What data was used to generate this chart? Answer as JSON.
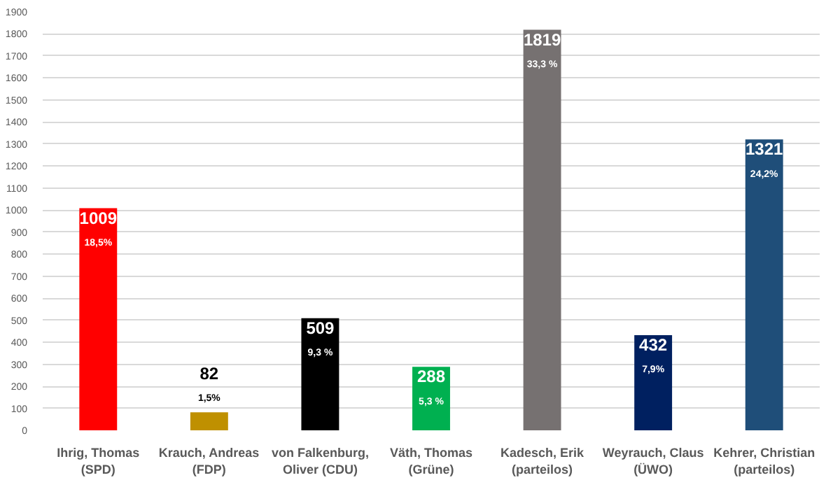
{
  "chart_data": {
    "type": "bar",
    "categories": [
      "Ihrig, Thomas\n(SPD)",
      "Krauch, Andreas\n(FDP)",
      "von Falkenburg,\nOliver (CDU)",
      "Väth, Thomas\n(Grüne)",
      "Kadesch, Erik\n(parteilos)",
      "Weyrauch, Claus\n(ÜWO)",
      "Kehrer, Christian\n(parteilos)"
    ],
    "values": [
      1009,
      82,
      509,
      288,
      1819,
      432,
      1321
    ],
    "colors": [
      "#ff0000",
      "#bf9000",
      "#000000",
      "#00b050",
      "#767171",
      "#002060",
      "#1f4e79"
    ],
    "value_labels": [
      "1009\n18,5%",
      "82\n1,5%",
      "509\n9,3 %",
      "288\n5,3 %",
      "1819\n33,3 %",
      "432\n7,9%",
      "1321\n24,2%"
    ],
    "ylim": [
      0,
      1900
    ],
    "yticks": [
      0,
      100,
      200,
      300,
      400,
      500,
      600,
      700,
      800,
      900,
      1000,
      1100,
      1200,
      1300,
      1400,
      1500,
      1600,
      1700,
      1800,
      1900
    ],
    "grid": "y"
  }
}
